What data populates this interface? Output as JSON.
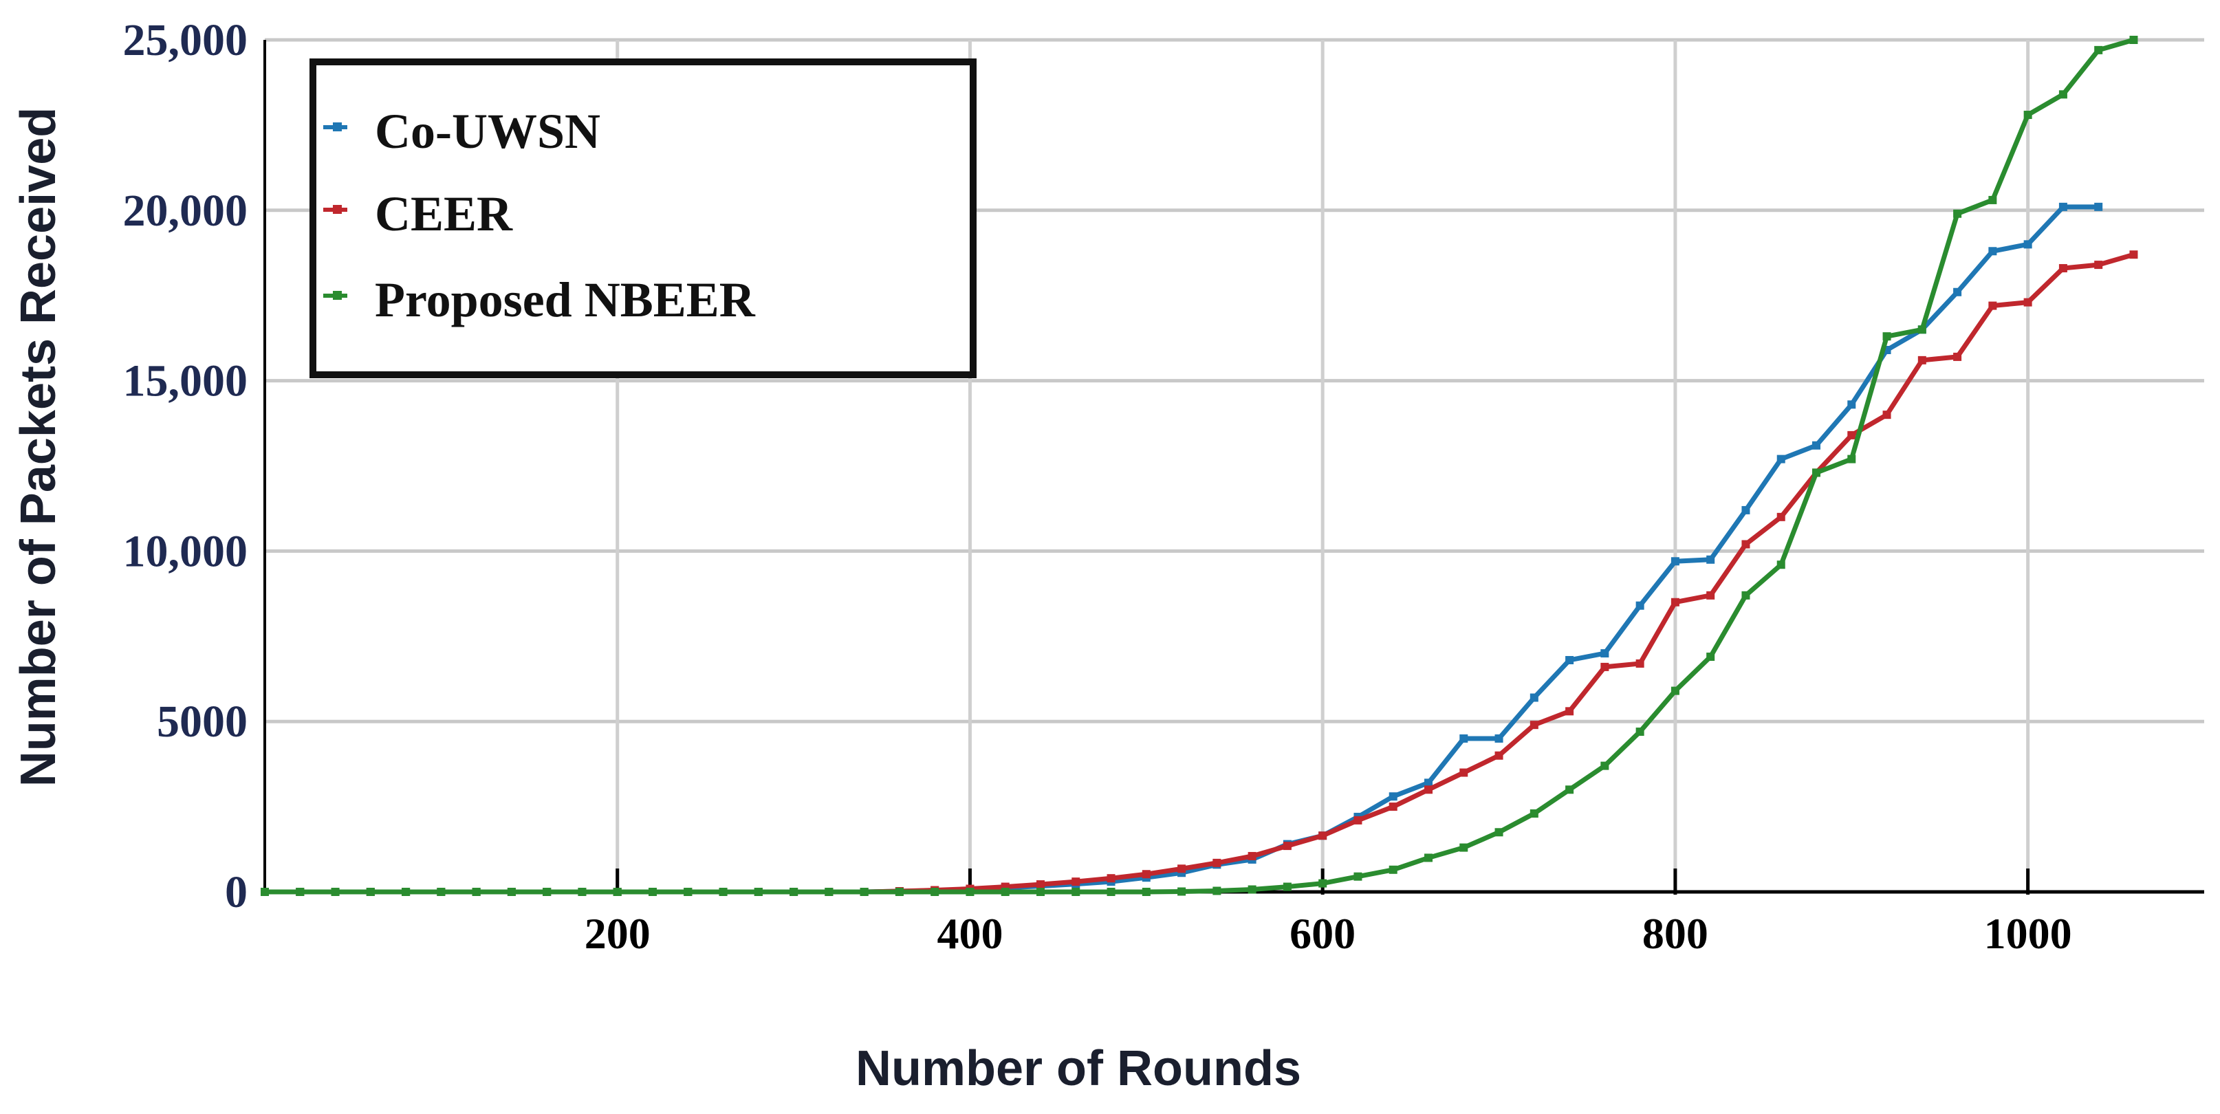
{
  "chart_data": {
    "type": "line",
    "title": "",
    "xlabel": "Number of Rounds",
    "ylabel": "Number of Packets Received",
    "xlim": [
      0,
      1100
    ],
    "ylim": [
      0,
      25000
    ],
    "x_ticks": [
      200,
      400,
      600,
      800,
      1000
    ],
    "x_tick_labels": [
      "200",
      "400",
      "600",
      "800",
      "1000"
    ],
    "y_ticks": [
      0,
      5000,
      10000,
      15000,
      20000,
      25000
    ],
    "y_tick_labels": [
      "0",
      "5000",
      "10,000",
      "15,000",
      "20,000",
      "25,000"
    ],
    "grid": true,
    "legend_position": "top-left",
    "series": [
      {
        "name": "Co-UWSN",
        "color": "#1f77b4",
        "points": [
          [
            0,
            0
          ],
          [
            20,
            0
          ],
          [
            40,
            0
          ],
          [
            60,
            0
          ],
          [
            80,
            0
          ],
          [
            100,
            0
          ],
          [
            120,
            0
          ],
          [
            140,
            0
          ],
          [
            160,
            0
          ],
          [
            180,
            0
          ],
          [
            200,
            0
          ],
          [
            220,
            0
          ],
          [
            240,
            0
          ],
          [
            260,
            0
          ],
          [
            280,
            0
          ],
          [
            300,
            0
          ],
          [
            320,
            0
          ],
          [
            340,
            0
          ],
          [
            360,
            20
          ],
          [
            380,
            40
          ],
          [
            400,
            80
          ],
          [
            420,
            120
          ],
          [
            440,
            170
          ],
          [
            460,
            230
          ],
          [
            480,
            300
          ],
          [
            500,
            420
          ],
          [
            520,
            560
          ],
          [
            540,
            800
          ],
          [
            560,
            950
          ],
          [
            580,
            1400
          ],
          [
            600,
            1650
          ],
          [
            620,
            2200
          ],
          [
            640,
            2800
          ],
          [
            660,
            3200
          ],
          [
            680,
            4500
          ],
          [
            700,
            4500
          ],
          [
            720,
            5700
          ],
          [
            740,
            6800
          ],
          [
            760,
            7000
          ],
          [
            780,
            8400
          ],
          [
            800,
            9700
          ],
          [
            820,
            9750
          ],
          [
            840,
            11200
          ],
          [
            860,
            12700
          ],
          [
            880,
            13100
          ],
          [
            900,
            14300
          ],
          [
            920,
            15900
          ],
          [
            940,
            16500
          ],
          [
            960,
            17600
          ],
          [
            980,
            18800
          ],
          [
            1000,
            19000
          ],
          [
            1020,
            20100
          ],
          [
            1040,
            20100
          ]
        ]
      },
      {
        "name": "CEER",
        "color": "#c0272d",
        "points": [
          [
            0,
            0
          ],
          [
            20,
            0
          ],
          [
            40,
            0
          ],
          [
            60,
            0
          ],
          [
            80,
            0
          ],
          [
            100,
            0
          ],
          [
            120,
            0
          ],
          [
            140,
            0
          ],
          [
            160,
            0
          ],
          [
            180,
            0
          ],
          [
            200,
            0
          ],
          [
            220,
            0
          ],
          [
            240,
            0
          ],
          [
            260,
            0
          ],
          [
            280,
            0
          ],
          [
            300,
            0
          ],
          [
            320,
            0
          ],
          [
            340,
            0
          ],
          [
            360,
            20
          ],
          [
            380,
            50
          ],
          [
            400,
            90
          ],
          [
            420,
            150
          ],
          [
            440,
            220
          ],
          [
            460,
            300
          ],
          [
            480,
            400
          ],
          [
            500,
            520
          ],
          [
            520,
            680
          ],
          [
            540,
            850
          ],
          [
            560,
            1050
          ],
          [
            580,
            1350
          ],
          [
            600,
            1650
          ],
          [
            620,
            2100
          ],
          [
            640,
            2500
          ],
          [
            660,
            3000
          ],
          [
            680,
            3500
          ],
          [
            700,
            4000
          ],
          [
            720,
            4900
          ],
          [
            740,
            5300
          ],
          [
            760,
            6600
          ],
          [
            780,
            6700
          ],
          [
            800,
            8500
          ],
          [
            820,
            8700
          ],
          [
            840,
            10200
          ],
          [
            860,
            11000
          ],
          [
            880,
            12300
          ],
          [
            900,
            13400
          ],
          [
            920,
            14000
          ],
          [
            940,
            15600
          ],
          [
            960,
            15700
          ],
          [
            980,
            17200
          ],
          [
            1000,
            17300
          ],
          [
            1020,
            18300
          ],
          [
            1040,
            18400
          ],
          [
            1060,
            18700
          ]
        ]
      },
      {
        "name": "Proposed NBEER",
        "color": "#2a8c2f",
        "points": [
          [
            0,
            0
          ],
          [
            20,
            0
          ],
          [
            40,
            0
          ],
          [
            60,
            0
          ],
          [
            80,
            0
          ],
          [
            100,
            0
          ],
          [
            120,
            0
          ],
          [
            140,
            0
          ],
          [
            160,
            0
          ],
          [
            180,
            0
          ],
          [
            200,
            0
          ],
          [
            220,
            0
          ],
          [
            240,
            0
          ],
          [
            260,
            0
          ],
          [
            280,
            0
          ],
          [
            300,
            0
          ],
          [
            320,
            0
          ],
          [
            340,
            0
          ],
          [
            360,
            0
          ],
          [
            380,
            0
          ],
          [
            400,
            0
          ],
          [
            420,
            0
          ],
          [
            440,
            0
          ],
          [
            460,
            0
          ],
          [
            480,
            0
          ],
          [
            500,
            0
          ],
          [
            520,
            10
          ],
          [
            540,
            30
          ],
          [
            560,
            70
          ],
          [
            580,
            150
          ],
          [
            600,
            250
          ],
          [
            620,
            450
          ],
          [
            640,
            650
          ],
          [
            660,
            1000
          ],
          [
            680,
            1300
          ],
          [
            700,
            1750
          ],
          [
            720,
            2300
          ],
          [
            740,
            3000
          ],
          [
            760,
            3700
          ],
          [
            780,
            4700
          ],
          [
            800,
            5900
          ],
          [
            820,
            6900
          ],
          [
            840,
            8700
          ],
          [
            860,
            9600
          ],
          [
            880,
            12300
          ],
          [
            900,
            12700
          ],
          [
            920,
            16300
          ],
          [
            940,
            16500
          ],
          [
            960,
            19900
          ],
          [
            980,
            20300
          ],
          [
            1000,
            22800
          ],
          [
            1020,
            23400
          ],
          [
            1040,
            24700
          ],
          [
            1060,
            25000
          ]
        ]
      }
    ]
  }
}
